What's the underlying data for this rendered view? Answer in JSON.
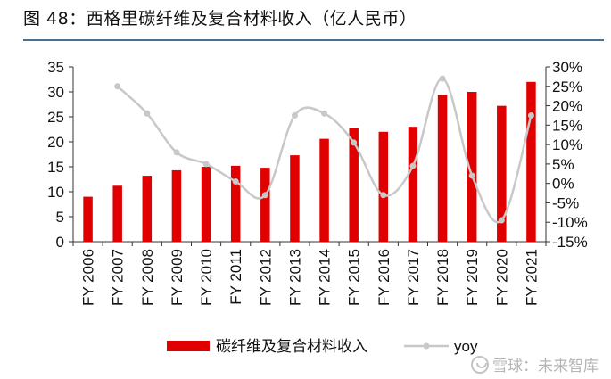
{
  "figure_title": "图 48：西格里碳纤维及复合材料收入（亿人民币）",
  "watermark": "雪球：未来智库",
  "chart_data": {
    "type": "bar",
    "categories": [
      "FY 2006",
      "FY 2007",
      "FY 2008",
      "FY 2009",
      "FY 2010",
      "FY 2011",
      "FY 2012",
      "FY 2013",
      "FY 2014",
      "FY 2015",
      "FY 2016",
      "FY 2017",
      "FY 2018",
      "FY 2019",
      "FY 2020",
      "FY 2021"
    ],
    "series": [
      {
        "name": "碳纤维及复合材料收入",
        "type": "bar",
        "axis": "left",
        "color": "#e00000",
        "values": [
          9,
          11.2,
          13.2,
          14.3,
          15,
          15.2,
          14.8,
          17.3,
          20.6,
          22.7,
          22,
          23,
          29.4,
          30,
          27.2,
          32
        ]
      },
      {
        "name": "yoy",
        "type": "line",
        "axis": "right",
        "color": "#c8c8c8",
        "values": [
          null,
          25,
          18,
          8,
          5,
          0.5,
          -3,
          17.5,
          18,
          10.5,
          -3,
          4.5,
          27,
          2,
          -9.5,
          17.5
        ]
      }
    ],
    "ylim_left": [
      0,
      35
    ],
    "yticks_left": [
      "0",
      "5",
      "10",
      "15",
      "20",
      "25",
      "30",
      "35"
    ],
    "ylim_right": [
      -15,
      30
    ],
    "yticks_right": [
      "-15%",
      "-10%",
      "-5%",
      "0%",
      "5%",
      "10%",
      "15%",
      "20%",
      "25%",
      "30%"
    ],
    "legend_position": "bottom",
    "grid": false
  }
}
